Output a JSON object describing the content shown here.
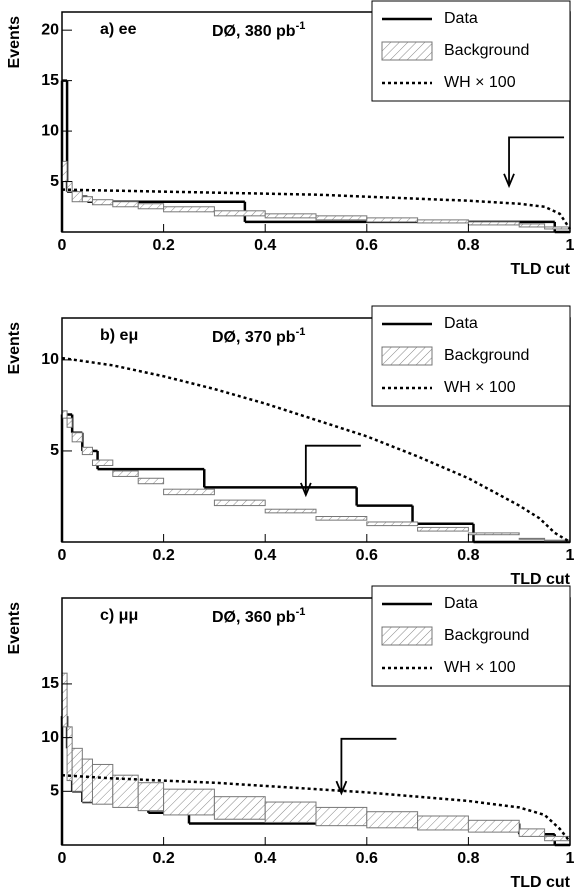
{
  "chart_data": [
    {
      "type": "step",
      "label": "a) ee",
      "lumi": "DØ, 380 pb",
      "lumi_exp": "-1",
      "x_label": "TLD cut",
      "y_label": "Events",
      "xlim": [
        0,
        1
      ],
      "xticks": [
        0,
        0.2,
        0.4,
        0.6,
        0.8,
        1
      ],
      "ylim": [
        0,
        21.8
      ],
      "yticks": [
        5,
        10,
        15,
        20
      ],
      "cut": 0.88,
      "series": [
        {
          "name": "Data",
          "color": "#000000",
          "style": "step",
          "edges": [
            0,
            0.01,
            0.03,
            0.05,
            0.36,
            0.97,
            1
          ],
          "values": [
            15,
            4,
            3.5,
            3,
            1,
            0
          ]
        },
        {
          "name": "Background",
          "color": "#777777",
          "style": "band",
          "edges": [
            0,
            0.01,
            0.02,
            0.04,
            0.06,
            0.1,
            0.15,
            0.2,
            0.3,
            0.4,
            0.5,
            0.6,
            0.7,
            0.8,
            0.9,
            0.95,
            1
          ],
          "lower": [
            5,
            4,
            3,
            3,
            2.7,
            2.5,
            2.3,
            2,
            1.6,
            1.4,
            1.2,
            1,
            0.9,
            0.7,
            0.5,
            0.3
          ],
          "upper": [
            7,
            5,
            4,
            3.5,
            3.2,
            3,
            2.8,
            2.5,
            2.1,
            1.8,
            1.6,
            1.4,
            1.2,
            1,
            0.8,
            0.5
          ]
        },
        {
          "name": "WH × 100",
          "color": "#000000",
          "style": "dotted",
          "x": [
            0,
            0.1,
            0.2,
            0.3,
            0.4,
            0.5,
            0.6,
            0.7,
            0.8,
            0.9,
            0.95,
            0.98,
            1
          ],
          "y": [
            4.2,
            4.1,
            4,
            3.9,
            3.8,
            3.7,
            3.5,
            3.3,
            3.1,
            2.8,
            2.5,
            1.8,
            0.3
          ]
        }
      ]
    },
    {
      "type": "step",
      "label": "b) eμ",
      "lumi": "DØ, 370 pb",
      "lumi_exp": "-1",
      "x_label": "TLD cut",
      "y_label": "Events",
      "xlim": [
        0,
        1
      ],
      "xticks": [
        0,
        0.2,
        0.4,
        0.6,
        0.8,
        1
      ],
      "ylim": [
        0,
        12.3
      ],
      "yticks": [
        5,
        10
      ],
      "cut": 0.48,
      "series": [
        {
          "name": "Data",
          "color": "#000000",
          "style": "step",
          "edges": [
            0,
            0.02,
            0.04,
            0.07,
            0.28,
            0.58,
            0.69,
            0.81,
            1
          ],
          "values": [
            7,
            6,
            5,
            4,
            3,
            2,
            1,
            0
          ]
        },
        {
          "name": "Background",
          "color": "#777777",
          "style": "band",
          "edges": [
            0,
            0.01,
            0.02,
            0.04,
            0.06,
            0.1,
            0.15,
            0.2,
            0.3,
            0.4,
            0.5,
            0.6,
            0.7,
            0.8,
            0.9,
            0.95,
            1
          ],
          "lower": [
            6.8,
            6.3,
            5.5,
            4.8,
            4.2,
            3.6,
            3.2,
            2.6,
            2,
            1.6,
            1.2,
            0.9,
            0.6,
            0.4,
            0.15,
            0.05
          ],
          "upper": [
            7.2,
            6.8,
            6,
            5.2,
            4.5,
            3.9,
            3.5,
            2.9,
            2.3,
            1.8,
            1.4,
            1.1,
            0.8,
            0.5,
            0.2,
            0.1
          ]
        },
        {
          "name": "WH × 100",
          "color": "#000000",
          "style": "dotted",
          "x": [
            0,
            0.1,
            0.2,
            0.3,
            0.4,
            0.5,
            0.6,
            0.7,
            0.8,
            0.9,
            0.94,
            0.97,
            1
          ],
          "y": [
            10.1,
            9.7,
            9.1,
            8.4,
            7.6,
            6.7,
            5.8,
            4.7,
            3.5,
            2,
            1.3,
            0.5,
            0
          ]
        }
      ]
    },
    {
      "type": "step",
      "label": "c) μμ",
      "lumi": "DØ, 360 pb",
      "lumi_exp": "-1",
      "x_label": "TLD cut",
      "y_label": "Events",
      "xlim": [
        0,
        1
      ],
      "xticks": [
        0,
        0.2,
        0.4,
        0.6,
        0.8,
        1
      ],
      "ylim": [
        0,
        23
      ],
      "yticks": [
        5,
        10,
        15
      ],
      "cut": 0.55,
      "series": [
        {
          "name": "Data",
          "color": "#000000",
          "style": "step",
          "edges": [
            0,
            0.01,
            0.02,
            0.04,
            0.17,
            0.25,
            0.9,
            0.97,
            1
          ],
          "values": [
            12,
            9,
            5,
            4,
            3,
            2,
            1,
            0
          ]
        },
        {
          "name": "Background",
          "color": "#777777",
          "style": "band",
          "edges": [
            0,
            0.01,
            0.02,
            0.04,
            0.06,
            0.1,
            0.15,
            0.2,
            0.3,
            0.4,
            0.5,
            0.6,
            0.7,
            0.8,
            0.9,
            0.95,
            1
          ],
          "lower": [
            11,
            6,
            5,
            4,
            3.8,
            3.5,
            3.2,
            2.8,
            2.4,
            2.1,
            1.8,
            1.6,
            1.4,
            1.2,
            0.8,
            0.4
          ],
          "upper": [
            16,
            11,
            9,
            8,
            7.5,
            6.5,
            5.8,
            5.2,
            4.5,
            4,
            3.5,
            3.1,
            2.7,
            2.3,
            1.5,
            0.8
          ]
        },
        {
          "name": "WH × 100",
          "color": "#000000",
          "style": "dotted",
          "x": [
            0,
            0.1,
            0.2,
            0.3,
            0.4,
            0.5,
            0.6,
            0.7,
            0.8,
            0.9,
            0.95,
            0.98,
            1
          ],
          "y": [
            6.5,
            6.2,
            6,
            5.8,
            5.5,
            5.2,
            4.9,
            4.5,
            4.1,
            3.5,
            2.8,
            1.5,
            0.3
          ]
        }
      ]
    }
  ]
}
